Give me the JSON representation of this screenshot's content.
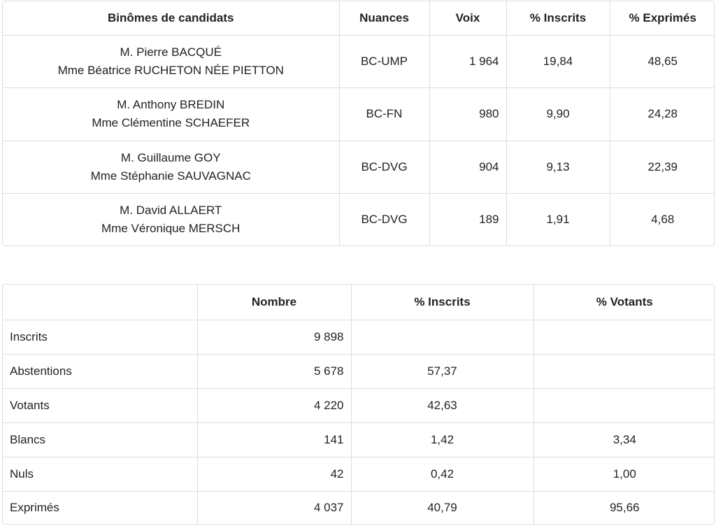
{
  "candidates_table": {
    "headers": [
      "Binômes de candidats",
      "Nuances",
      "Voix",
      "% Inscrits",
      "% Exprimés"
    ],
    "rows": [
      {
        "line1": "M. Pierre BACQUÉ",
        "line2": "Mme Béatrice RUCHETON NÉE PIETTON",
        "nuance": "BC-UMP",
        "voix": "1 964",
        "inscrits": "19,84",
        "exprimes": "48,65"
      },
      {
        "line1": "M. Anthony BREDIN",
        "line2": "Mme Clémentine SCHAEFER",
        "nuance": "BC-FN",
        "voix": "980",
        "inscrits": "9,90",
        "exprimes": "24,28"
      },
      {
        "line1": "M. Guillaume GOY",
        "line2": "Mme Stéphanie SAUVAGNAC",
        "nuance": "BC-DVG",
        "voix": "904",
        "inscrits": "9,13",
        "exprimes": "22,39"
      },
      {
        "line1": "M. David ALLAERT",
        "line2": "Mme Véronique MERSCH",
        "nuance": "BC-DVG",
        "voix": "189",
        "inscrits": "1,91",
        "exprimes": "4,68"
      }
    ]
  },
  "participation_table": {
    "headers": [
      "",
      "Nombre",
      "% Inscrits",
      "% Votants"
    ],
    "rows": [
      {
        "label": "Inscrits",
        "nombre": "9 898",
        "inscrits": "",
        "votants": ""
      },
      {
        "label": "Abstentions",
        "nombre": "5 678",
        "inscrits": "57,37",
        "votants": ""
      },
      {
        "label": "Votants",
        "nombre": "4 220",
        "inscrits": "42,63",
        "votants": ""
      },
      {
        "label": "Blancs",
        "nombre": "141",
        "inscrits": "1,42",
        "votants": "3,34"
      },
      {
        "label": "Nuls",
        "nombre": "42",
        "inscrits": "0,42",
        "votants": "1,00"
      },
      {
        "label": "Exprimés",
        "nombre": "4 037",
        "inscrits": "40,79",
        "votants": "95,66"
      }
    ]
  }
}
